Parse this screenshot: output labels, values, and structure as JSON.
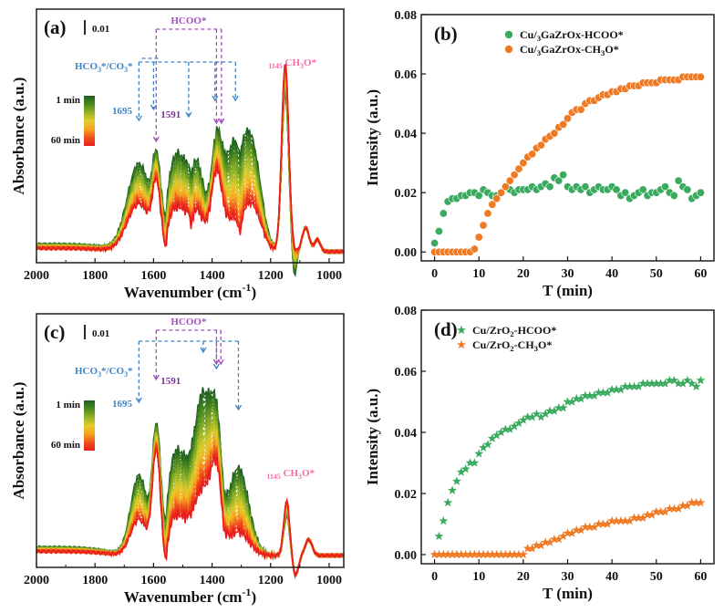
{
  "chart_data": [
    {
      "panel": "(a)",
      "type": "line",
      "xlabel_main": "Wavenumber (cm",
      "xlabel_sup": "-1",
      "xlabel_end": ")",
      "ylabel": "Absorbance  (a.u.)",
      "xlim": [
        2000,
        950
      ],
      "xticks": [
        "2000",
        "1800",
        "1600",
        "1400",
        "1200",
        "1000"
      ],
      "scale_label": "0.01",
      "colorbar": {
        "top": "1 min",
        "bottom": "60 min",
        "colors": [
          "#1e5e1e",
          "#4c8a1f",
          "#93b327",
          "#e3cc2a",
          "#f7a51f",
          "#f0501c",
          "#e81d1d"
        ]
      },
      "annotations": [
        {
          "id": "hcoo",
          "text": "HCOO*",
          "color": "#a04fc0"
        },
        {
          "id": "hco3",
          "text": "HCO3*/CO3*",
          "color": "#3d85c6"
        },
        {
          "id": "p1695",
          "text": "1695",
          "color": "#3d85c6"
        },
        {
          "id": "p1591",
          "text": "1591",
          "color": "#7b2f96"
        },
        {
          "id": "p1145",
          "text": "1145 CH3O*",
          "color": "#f06fa8"
        }
      ],
      "marked_peaks": [
        1695,
        1591,
        1145
      ]
    },
    {
      "panel": "(b)",
      "type": "scatter",
      "xlabel": "T (min)",
      "ylabel": "Intensity (a.u.)",
      "xlim": [
        -3,
        63
      ],
      "ylim": [
        -0.003,
        0.08
      ],
      "xticks": [
        "0",
        "10",
        "20",
        "30",
        "40",
        "50",
        "60"
      ],
      "yticks": [
        "0.00",
        "0.02",
        "0.04",
        "0.06",
        "0.08"
      ],
      "legend": "top-right",
      "series": [
        {
          "name": "Cu/3GaZrOx-HCOO*",
          "color": "#3aab5e",
          "marker": "circle",
          "x": [
            0,
            1,
            2,
            3,
            4,
            5,
            6,
            7,
            8,
            9,
            10,
            11,
            12,
            13,
            14,
            15,
            16,
            17,
            18,
            19,
            20,
            21,
            22,
            23,
            24,
            25,
            26,
            27,
            28,
            29,
            30,
            31,
            32,
            33,
            34,
            35,
            36,
            37,
            38,
            39,
            40,
            41,
            42,
            43,
            44,
            45,
            46,
            47,
            48,
            49,
            50,
            51,
            52,
            53,
            54,
            55,
            56,
            57,
            58,
            59,
            60
          ],
          "y": [
            0.003,
            0.007,
            0.013,
            0.017,
            0.018,
            0.018,
            0.019,
            0.019,
            0.02,
            0.02,
            0.019,
            0.021,
            0.02,
            0.019,
            0.019,
            0.02,
            0.022,
            0.021,
            0.02,
            0.021,
            0.021,
            0.021,
            0.022,
            0.021,
            0.022,
            0.023,
            0.022,
            0.025,
            0.024,
            0.026,
            0.022,
            0.021,
            0.022,
            0.021,
            0.022,
            0.02,
            0.021,
            0.022,
            0.021,
            0.021,
            0.022,
            0.021,
            0.019,
            0.02,
            0.018,
            0.019,
            0.02,
            0.021,
            0.019,
            0.02,
            0.02,
            0.021,
            0.022,
            0.02,
            0.019,
            0.024,
            0.022,
            0.021,
            0.018,
            0.019,
            0.02
          ]
        },
        {
          "name": "Cu/3GaZrOx-CH3O*",
          "color": "#f07a24",
          "marker": "circle",
          "x": [
            0,
            1,
            2,
            3,
            4,
            5,
            6,
            7,
            8,
            9,
            10,
            11,
            12,
            13,
            14,
            15,
            16,
            17,
            18,
            19,
            20,
            21,
            22,
            23,
            24,
            25,
            26,
            27,
            28,
            29,
            30,
            31,
            32,
            33,
            34,
            35,
            36,
            37,
            38,
            39,
            40,
            41,
            42,
            43,
            44,
            45,
            46,
            47,
            48,
            49,
            50,
            51,
            52,
            53,
            54,
            55,
            56,
            57,
            58,
            59,
            60
          ],
          "y": [
            0,
            0,
            0,
            0,
            0,
            0,
            0,
            0,
            0,
            0.001,
            0.005,
            0.009,
            0.013,
            0.016,
            0.018,
            0.02,
            0.022,
            0.024,
            0.026,
            0.028,
            0.03,
            0.032,
            0.033,
            0.035,
            0.036,
            0.038,
            0.039,
            0.04,
            0.042,
            0.043,
            0.045,
            0.047,
            0.048,
            0.048,
            0.05,
            0.051,
            0.051,
            0.052,
            0.053,
            0.053,
            0.054,
            0.054,
            0.055,
            0.055,
            0.056,
            0.056,
            0.056,
            0.057,
            0.057,
            0.057,
            0.057,
            0.058,
            0.058,
            0.058,
            0.058,
            0.058,
            0.059,
            0.059,
            0.059,
            0.059,
            0.059
          ]
        }
      ]
    },
    {
      "panel": "(c)",
      "type": "line",
      "xlabel_main": "Wavenumber (cm",
      "xlabel_sup": "-1",
      "xlabel_end": ")",
      "ylabel": "Absorbance  (a.u.)",
      "xlim": [
        2000,
        950
      ],
      "xticks": [
        "2000",
        "1800",
        "1600",
        "1400",
        "1200",
        "1000"
      ],
      "scale_label": "0.01",
      "colorbar": {
        "top": "1 min",
        "bottom": "60 min",
        "colors": [
          "#1e5e1e",
          "#4c8a1f",
          "#93b327",
          "#e3cc2a",
          "#f7a51f",
          "#f0501c",
          "#e81d1d"
        ]
      },
      "annotations": [
        {
          "id": "hcoo",
          "text": "HCOO*",
          "color": "#a04fc0"
        },
        {
          "id": "hco3",
          "text": "HCO3*/CO3*",
          "color": "#3d85c6"
        },
        {
          "id": "p1695",
          "text": "1695",
          "color": "#3d85c6"
        },
        {
          "id": "p1591",
          "text": "1591",
          "color": "#7b2f96"
        },
        {
          "id": "p1145",
          "text": "1145 CH3O*",
          "color": "#f06fa8"
        }
      ],
      "marked_peaks": [
        1695,
        1591,
        1145
      ]
    },
    {
      "panel": "(d)",
      "type": "scatter",
      "xlabel": "T (min)",
      "ylabel": "Intensity (a.u.)",
      "xlim": [
        -3,
        63
      ],
      "ylim": [
        -0.003,
        0.08
      ],
      "xticks": [
        "0",
        "10",
        "20",
        "30",
        "40",
        "50",
        "60"
      ],
      "yticks": [
        "0.00",
        "0.02",
        "0.04",
        "0.06",
        "0.08"
      ],
      "legend": "top-left",
      "series": [
        {
          "name": "Cu/ZrO2-HCOO*",
          "color": "#3aab5e",
          "marker": "star",
          "x": [
            1,
            2,
            3,
            4,
            5,
            6,
            7,
            8,
            9,
            10,
            11,
            12,
            13,
            14,
            15,
            16,
            17,
            18,
            19,
            20,
            21,
            22,
            23,
            24,
            25,
            26,
            27,
            28,
            29,
            30,
            31,
            32,
            33,
            34,
            35,
            36,
            37,
            38,
            39,
            40,
            41,
            42,
            43,
            44,
            45,
            46,
            47,
            48,
            49,
            50,
            51,
            52,
            53,
            54,
            55,
            56,
            57,
            58,
            59,
            60
          ],
          "y": [
            0.006,
            0.011,
            0.017,
            0.021,
            0.024,
            0.027,
            0.028,
            0.03,
            0.03,
            0.033,
            0.035,
            0.036,
            0.038,
            0.039,
            0.04,
            0.041,
            0.041,
            0.042,
            0.043,
            0.044,
            0.045,
            0.045,
            0.046,
            0.045,
            0.046,
            0.047,
            0.047,
            0.048,
            0.048,
            0.05,
            0.05,
            0.051,
            0.051,
            0.052,
            0.052,
            0.052,
            0.053,
            0.053,
            0.053,
            0.054,
            0.054,
            0.054,
            0.055,
            0.055,
            0.055,
            0.055,
            0.056,
            0.056,
            0.056,
            0.056,
            0.056,
            0.056,
            0.057,
            0.057,
            0.056,
            0.056,
            0.057,
            0.056,
            0.055,
            0.057
          ]
        },
        {
          "name": "Cu/ZrO2-CH3O*",
          "color": "#f07a24",
          "marker": "star",
          "x": [
            0,
            1,
            2,
            3,
            4,
            5,
            6,
            7,
            8,
            9,
            10,
            11,
            12,
            13,
            14,
            15,
            16,
            17,
            18,
            19,
            20,
            21,
            22,
            23,
            24,
            25,
            26,
            27,
            28,
            29,
            30,
            31,
            32,
            33,
            34,
            35,
            36,
            37,
            38,
            39,
            40,
            41,
            42,
            43,
            44,
            45,
            46,
            47,
            48,
            49,
            50,
            51,
            52,
            53,
            54,
            55,
            56,
            57,
            58,
            59,
            60
          ],
          "y": [
            0,
            0,
            0,
            0,
            0,
            0,
            0,
            0,
            0,
            0,
            0,
            0,
            0,
            0,
            0,
            0,
            0,
            0,
            0,
            0,
            0,
            0.002,
            0.002,
            0.003,
            0.003,
            0.004,
            0.004,
            0.005,
            0.005,
            0.006,
            0.007,
            0.007,
            0.008,
            0.008,
            0.009,
            0.009,
            0.009,
            0.01,
            0.01,
            0.01,
            0.011,
            0.011,
            0.011,
            0.011,
            0.011,
            0.012,
            0.012,
            0.012,
            0.013,
            0.013,
            0.014,
            0.014,
            0.014,
            0.015,
            0.015,
            0.015,
            0.016,
            0.016,
            0.017,
            0.017,
            0.017
          ]
        }
      ]
    }
  ]
}
